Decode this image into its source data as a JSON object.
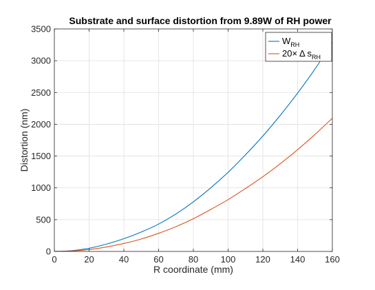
{
  "chart_data": {
    "type": "line",
    "title": "Substrate and surface distortion from 9.89W of RH power",
    "xlabel": "R coordinate (mm)",
    "ylabel": "Distortion (nm)",
    "xlim": [
      0,
      160
    ],
    "ylim": [
      0,
      3500
    ],
    "xticks": [
      "0",
      "20",
      "40",
      "60",
      "80",
      "100",
      "120",
      "140",
      "160"
    ],
    "yticks": [
      "0",
      "500",
      "1000",
      "1500",
      "2000",
      "2500",
      "3000",
      "3500"
    ],
    "grid": true,
    "legend_position": "top-right",
    "x": [
      0,
      10,
      20,
      30,
      40,
      50,
      60,
      70,
      80,
      90,
      100,
      110,
      120,
      130,
      140,
      150,
      160
    ],
    "series": [
      {
        "name": "W",
        "name_subscript": "RH",
        "color": "#0072bd",
        "values": [
          0,
          12,
          50,
          115,
          200,
          305,
          430,
          590,
          780,
          1000,
          1245,
          1520,
          1815,
          2140,
          2490,
          2870,
          3290
        ]
      },
      {
        "name": "20× Δ s",
        "name_subscript": "RH",
        "color": "#d95319",
        "values": [
          0,
          7,
          30,
          70,
          125,
          195,
          285,
          390,
          515,
          660,
          815,
          990,
          1175,
          1380,
          1600,
          1840,
          2095
        ]
      }
    ]
  }
}
